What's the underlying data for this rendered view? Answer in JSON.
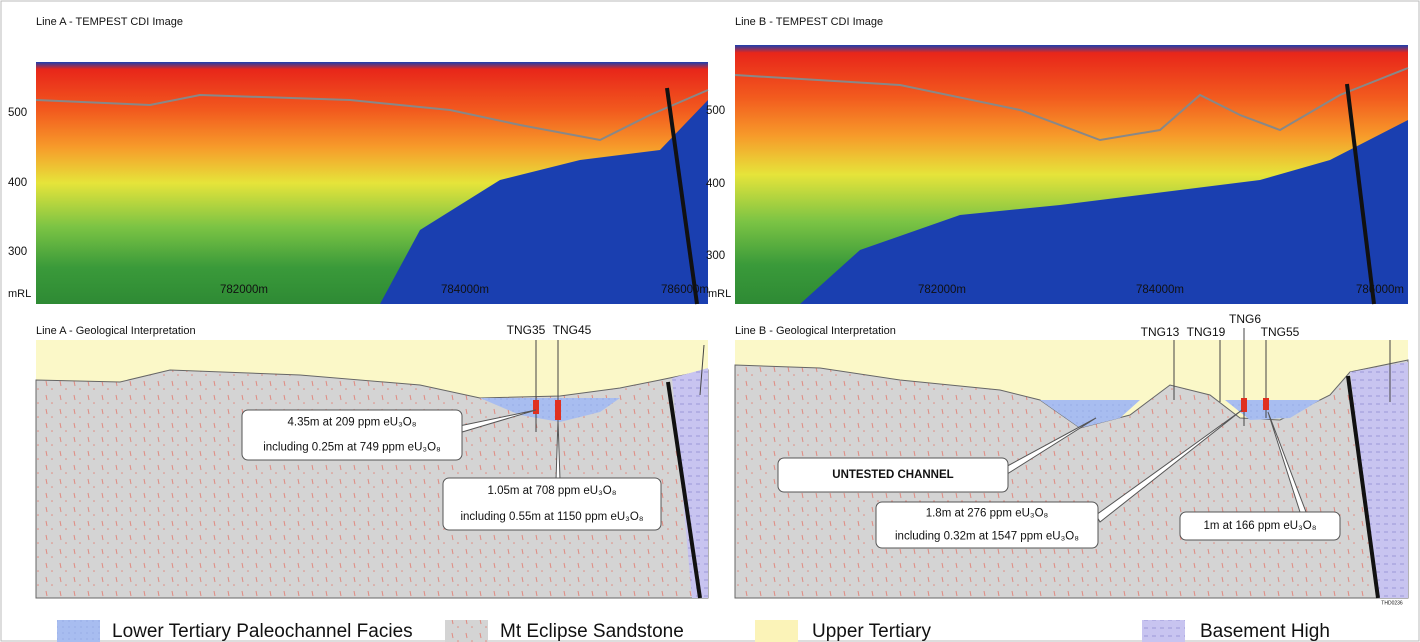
{
  "panels": [
    {
      "title": "Line A - TEMPEST CDI Image",
      "y_labels": [
        "500",
        "400",
        "300"
      ],
      "y_unit": "mRL",
      "x_labels": [
        "782000m",
        "784000m",
        "786000m"
      ]
    },
    {
      "title": "Line B - TEMPEST CDI Image",
      "y_labels": [
        "500",
        "400",
        "300"
      ],
      "y_unit": "mRL",
      "x_labels": [
        "782000m",
        "784000m",
        "786000m"
      ]
    }
  ],
  "sections": [
    {
      "title": "Line A - Geological Interpretation",
      "holes": [
        "TNG35",
        "TNG45"
      ],
      "callouts": [
        [
          "4.35m at 209 ppm eU₃O₈",
          "including 0.25m at 749 ppm eU₃O₈"
        ],
        [
          "1.05m at 708 ppm eU₃O₈",
          "including 0.55m at 1150 ppm eU₃O₈"
        ]
      ]
    },
    {
      "title": "Line B - Geological Interpretation",
      "holes": [
        "TNG13",
        "TNG19",
        "TNG6",
        "TNG55"
      ],
      "callouts": [
        [
          "UNTESTED CHANNEL"
        ],
        [
          "1.8m at 276 ppm eU₃O₈",
          "including 0.32m at 1547 ppm eU₃O₈"
        ],
        [
          "1m at 166 ppm eU₃O₈"
        ]
      ]
    }
  ],
  "figure_code": "THD0236",
  "legend": [
    "Lower Tertiary Paleochannel Facies",
    "Mt Eclipse Sandstone",
    "Upper Tertiary",
    "Basement High"
  ]
}
